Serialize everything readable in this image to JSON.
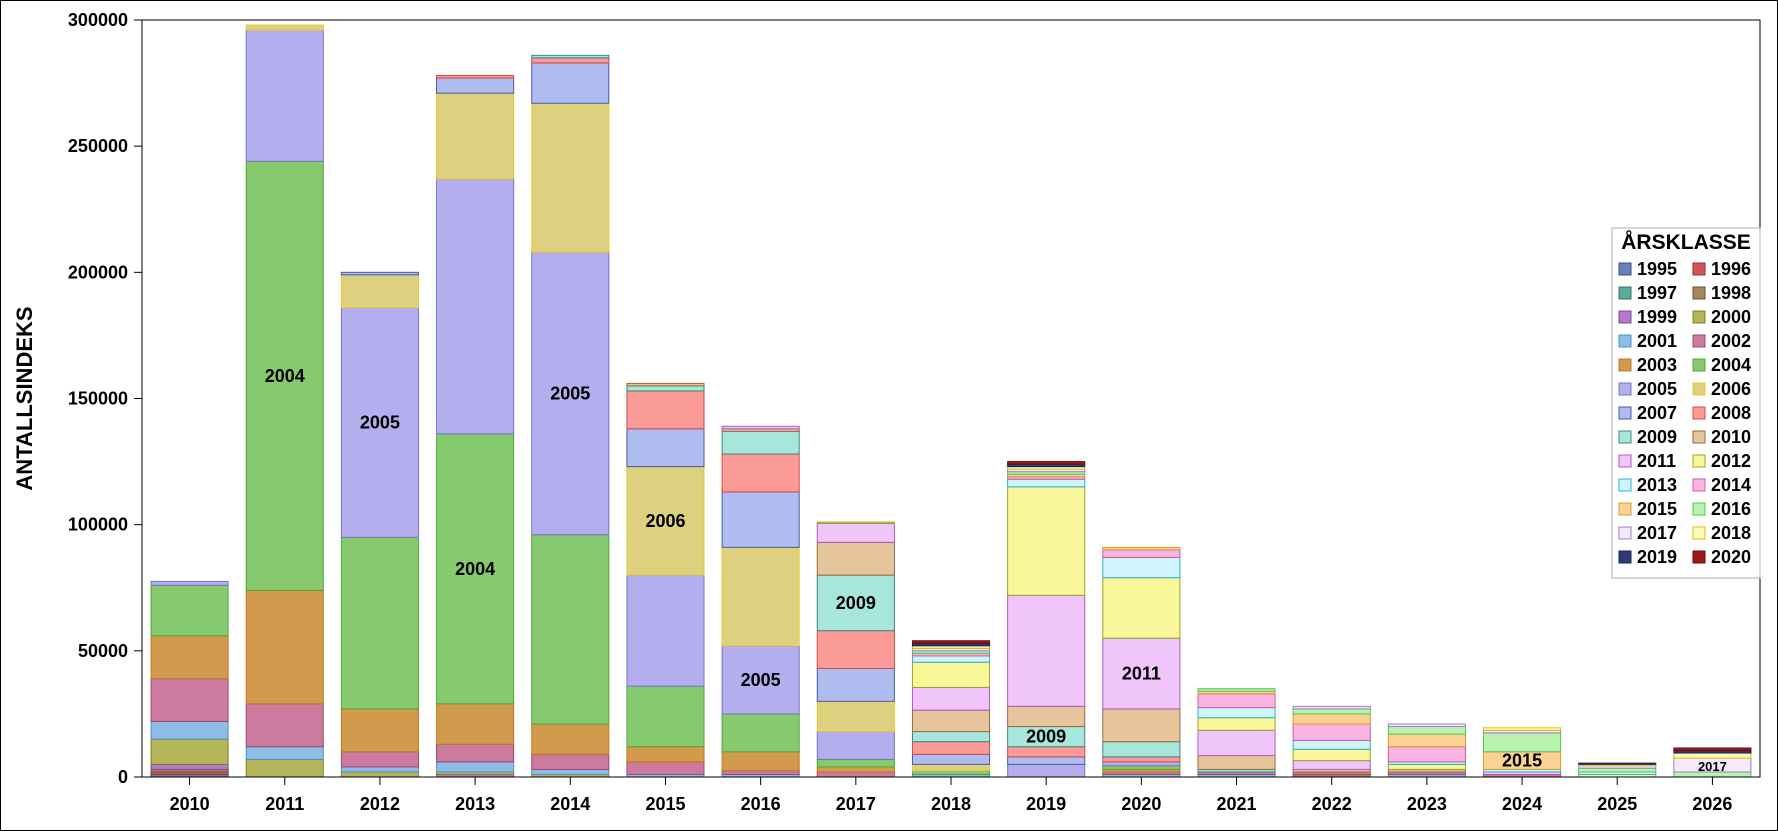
{
  "chart_data": {
    "type": "bar",
    "stacked": true,
    "ylabel": "ANTALLSINDEKS",
    "xlabel": "",
    "ylim": [
      0,
      300000
    ],
    "yticks": [
      0,
      50000,
      100000,
      150000,
      200000,
      250000,
      300000
    ],
    "categories": [
      "2010",
      "2011",
      "2012",
      "2013",
      "2014",
      "2015",
      "2016",
      "2017",
      "2018",
      "2019",
      "2020",
      "2021",
      "2022",
      "2023",
      "2024",
      "2025",
      "2026"
    ],
    "legend": {
      "title": "ÅRSKLASSE",
      "position": "right",
      "entries": [
        "1995",
        "1996",
        "1997",
        "1998",
        "1999",
        "2000",
        "2001",
        "2002",
        "2003",
        "2004",
        "2005",
        "2006",
        "2007",
        "2008",
        "2009",
        "2010",
        "2011",
        "2012",
        "2013",
        "2014",
        "2015",
        "2016",
        "2017",
        "2018",
        "2019",
        "2020"
      ]
    },
    "colors": {
      "1995": "#6a7fba",
      "1996": "#d0555a",
      "1997": "#5fa89a",
      "1998": "#a68560",
      "1999": "#b27acc",
      "2000": "#b5b55a",
      "2001": "#8dbde6",
      "2002": "#cc7a9e",
      "2003": "#d29a4d",
      "2004": "#86c96f",
      "2005": "#b4aeee",
      "2006": "#ddd07e",
      "2007": "#aebcf0",
      "2008": "#fa9b98",
      "2009": "#a6e6dc",
      "2010": "#e6c49c",
      "2011": "#f0c6fa",
      "2012": "#f8f89a",
      "2013": "#d0f4fb",
      "2014": "#fab4e2",
      "2015": "#fcd294",
      "2016": "#bcf2b0",
      "2017": "#f3eafc",
      "2018": "#fbfbbc",
      "2019": "#2d3b78",
      "2020": "#9c1a1a"
    },
    "borders": {
      "1995": "#3f4f8a",
      "1996": "#9e2b2b",
      "1997": "#2f7a6c",
      "1998": "#6e5432",
      "1999": "#7f4a99",
      "2000": "#80802a",
      "2001": "#4f91c6",
      "2002": "#9e4a6e",
      "2003": "#c07a20",
      "2004": "#4fa83a",
      "2005": "#7a72c8",
      "2006": "#e8c830",
      "2007": "#4a5aa8",
      "2008": "#d84848",
      "2009": "#3a8a7c",
      "2010": "#9a6a3a",
      "2011": "#b05ac0",
      "2012": "#a0a020",
      "2013": "#30b0d0",
      "2014": "#d05aa0",
      "2015": "#d89a30",
      "2016": "#50c850",
      "2017": "#9a80c8",
      "2018": "#e0c000",
      "2019": "#1a2450",
      "2020": "#6a0a0a"
    },
    "series": [
      {
        "year": "2010",
        "segments": [
          [
            "1995",
            1000
          ],
          [
            "1996",
            1000
          ],
          [
            "1998",
            1000
          ],
          [
            "1999",
            2000
          ],
          [
            "2000",
            10000
          ],
          [
            "2001",
            7000
          ],
          [
            "2002",
            17000
          ],
          [
            "2003",
            17000
          ],
          [
            "2004",
            20000
          ],
          [
            "2005",
            1500
          ]
        ]
      },
      {
        "year": "2011",
        "segments": [
          [
            "2000",
            7000
          ],
          [
            "2001",
            5000
          ],
          [
            "2002",
            17000
          ],
          [
            "2003",
            45000
          ],
          [
            "2004",
            170000
          ],
          [
            "2005",
            52000
          ],
          [
            "2006",
            2000
          ]
        ]
      },
      {
        "year": "2012",
        "segments": [
          [
            "2000",
            2000
          ],
          [
            "2001",
            2000
          ],
          [
            "2002",
            6000
          ],
          [
            "2003",
            17000
          ],
          [
            "2004",
            68000
          ],
          [
            "2005",
            91000
          ],
          [
            "2006",
            13000
          ],
          [
            "2007",
            1000
          ]
        ]
      },
      {
        "year": "2013",
        "segments": [
          [
            "1999",
            1000
          ],
          [
            "2000",
            1000
          ],
          [
            "2001",
            4000
          ],
          [
            "2002",
            7000
          ],
          [
            "2003",
            16000
          ],
          [
            "2004",
            107000
          ],
          [
            "2005",
            101000
          ],
          [
            "2006",
            34000
          ],
          [
            "2007",
            6000
          ],
          [
            "2008",
            1000
          ]
        ]
      },
      {
        "year": "2014",
        "segments": [
          [
            "2000",
            1000
          ],
          [
            "2001",
            2000
          ],
          [
            "2002",
            6000
          ],
          [
            "2003",
            12000
          ],
          [
            "2004",
            75000
          ],
          [
            "2005",
            112000
          ],
          [
            "2006",
            59000
          ],
          [
            "2007",
            16000
          ],
          [
            "2008",
            2000
          ],
          [
            "2009",
            1000
          ]
        ]
      },
      {
        "year": "2015",
        "segments": [
          [
            "2001",
            1000
          ],
          [
            "2002",
            5000
          ],
          [
            "2003",
            6000
          ],
          [
            "2004",
            24000
          ],
          [
            "2005",
            44000
          ],
          [
            "2006",
            43000
          ],
          [
            "2007",
            15000
          ],
          [
            "2008",
            15000
          ],
          [
            "2009",
            2000
          ],
          [
            "2010",
            1000
          ]
        ]
      },
      {
        "year": "2016",
        "segments": [
          [
            "2001",
            1000
          ],
          [
            "2002",
            1500
          ],
          [
            "2003",
            7500
          ],
          [
            "2004",
            15000
          ],
          [
            "2005",
            27000
          ],
          [
            "2006",
            39000
          ],
          [
            "2007",
            22000
          ],
          [
            "2008",
            15000
          ],
          [
            "2009",
            9000
          ],
          [
            "2010",
            1000
          ],
          [
            "2011",
            1000
          ]
        ]
      },
      {
        "year": "2017",
        "segments": [
          [
            "2002",
            2000
          ],
          [
            "2003",
            2000
          ],
          [
            "2004",
            3000
          ],
          [
            "2005",
            11000
          ],
          [
            "2006",
            12000
          ],
          [
            "2007",
            13000
          ],
          [
            "2008",
            15000
          ],
          [
            "2009",
            22000
          ],
          [
            "2010",
            13000
          ],
          [
            "2011",
            7500
          ],
          [
            "2012",
            500
          ]
        ]
      },
      {
        "year": "2018",
        "segments": [
          [
            "2001",
            1000
          ],
          [
            "2004",
            1500
          ],
          [
            "2006",
            2500
          ],
          [
            "2007",
            4000
          ],
          [
            "2008",
            5000
          ],
          [
            "2009",
            4000
          ],
          [
            "2010",
            8500
          ],
          [
            "2011",
            9000
          ],
          [
            "2012",
            10000
          ],
          [
            "2013",
            2500
          ],
          [
            "2014",
            1000
          ],
          [
            "2016",
            1000
          ],
          [
            "2017",
            1000
          ],
          [
            "2018",
            1000
          ],
          [
            "2019",
            1000
          ],
          [
            "2020",
            1000
          ]
        ]
      },
      {
        "year": "2019",
        "segments": [
          [
            "2005",
            5000
          ],
          [
            "2007",
            3000
          ],
          [
            "2008",
            4000
          ],
          [
            "2009",
            8000
          ],
          [
            "2010",
            8000
          ],
          [
            "2011",
            44000
          ],
          [
            "2012",
            43000
          ],
          [
            "2013",
            3000
          ],
          [
            "2014",
            1000
          ],
          [
            "2015",
            1000
          ],
          [
            "2016",
            1000
          ],
          [
            "2017",
            1000
          ],
          [
            "2018",
            1000
          ],
          [
            "2019",
            1000
          ],
          [
            "2020",
            1000
          ]
        ]
      },
      {
        "year": "2020",
        "segments": [
          [
            "2001",
            1000
          ],
          [
            "2002",
            1000
          ],
          [
            "2003",
            1000
          ],
          [
            "2004",
            1500
          ],
          [
            "2005",
            1500
          ],
          [
            "2008",
            2000
          ],
          [
            "2009",
            6000
          ],
          [
            "2010",
            13000
          ],
          [
            "2011",
            28000
          ],
          [
            "2012",
            24000
          ],
          [
            "2013",
            8000
          ],
          [
            "2014",
            3000
          ],
          [
            "2015",
            1000
          ]
        ]
      },
      {
        "year": "2021",
        "segments": [
          [
            "2001",
            1000
          ],
          [
            "2002",
            1000
          ],
          [
            "2009",
            1000
          ],
          [
            "2010",
            5500
          ],
          [
            "2011",
            10000
          ],
          [
            "2012",
            5000
          ],
          [
            "2013",
            4000
          ],
          [
            "2014",
            5500
          ],
          [
            "2015",
            1000
          ],
          [
            "2016",
            1000
          ]
        ]
      },
      {
        "year": "2022",
        "segments": [
          [
            "1998",
            1000
          ],
          [
            "2002",
            1000
          ],
          [
            "2010",
            1000
          ],
          [
            "2011",
            3500
          ],
          [
            "2012",
            4500
          ],
          [
            "2013",
            3500
          ],
          [
            "2014",
            6500
          ],
          [
            "2015",
            4000
          ],
          [
            "2016",
            2000
          ],
          [
            "2017",
            1000
          ]
        ]
      },
      {
        "year": "2023",
        "segments": [
          [
            "2001",
            1000
          ],
          [
            "2002",
            1000
          ],
          [
            "2010",
            1000
          ],
          [
            "2012",
            2000
          ],
          [
            "2013",
            1000
          ],
          [
            "2014",
            6000
          ],
          [
            "2015",
            5000
          ],
          [
            "2016",
            3000
          ],
          [
            "2017",
            1000
          ]
        ]
      },
      {
        "year": "2024",
        "segments": [
          [
            "2002",
            1000
          ],
          [
            "2011",
            1000
          ],
          [
            "2013",
            1000
          ],
          [
            "2015",
            7000
          ],
          [
            "2016",
            7500
          ],
          [
            "2017",
            1000
          ],
          [
            "2018",
            1000
          ]
        ]
      },
      {
        "year": "2025",
        "segments": [
          [
            "2012",
            1000
          ],
          [
            "2013",
            1000
          ],
          [
            "2016",
            1500
          ],
          [
            "2017",
            1000
          ],
          [
            "2018",
            500
          ],
          [
            "2019",
            500
          ]
        ]
      },
      {
        "year": "2026",
        "segments": [
          [
            "2016",
            2000
          ],
          [
            "2017",
            5500
          ],
          [
            "2018",
            2000
          ],
          [
            "2019",
            1000
          ],
          [
            "2020",
            1000
          ]
        ]
      }
    ],
    "annotations": [
      {
        "bar": "2011",
        "segment": "2004",
        "text": "2004"
      },
      {
        "bar": "2012",
        "segment": "2005",
        "text": "2005"
      },
      {
        "bar": "2013",
        "segment": "2004",
        "text": "2004"
      },
      {
        "bar": "2014",
        "segment": "2005",
        "text": "2005"
      },
      {
        "bar": "2015",
        "segment": "2006",
        "text": "2006"
      },
      {
        "bar": "2016",
        "segment": "2005",
        "text": "2005"
      },
      {
        "bar": "2017",
        "segment": "2009",
        "text": "2009"
      },
      {
        "bar": "2019",
        "segment": "2009",
        "text": "2009"
      },
      {
        "bar": "2020",
        "segment": "2011",
        "text": "2011"
      },
      {
        "bar": "2024",
        "segment": "2015",
        "text": "2015"
      },
      {
        "bar": "2026",
        "segment": "2017",
        "text": "2017",
        "small": true
      }
    ]
  }
}
